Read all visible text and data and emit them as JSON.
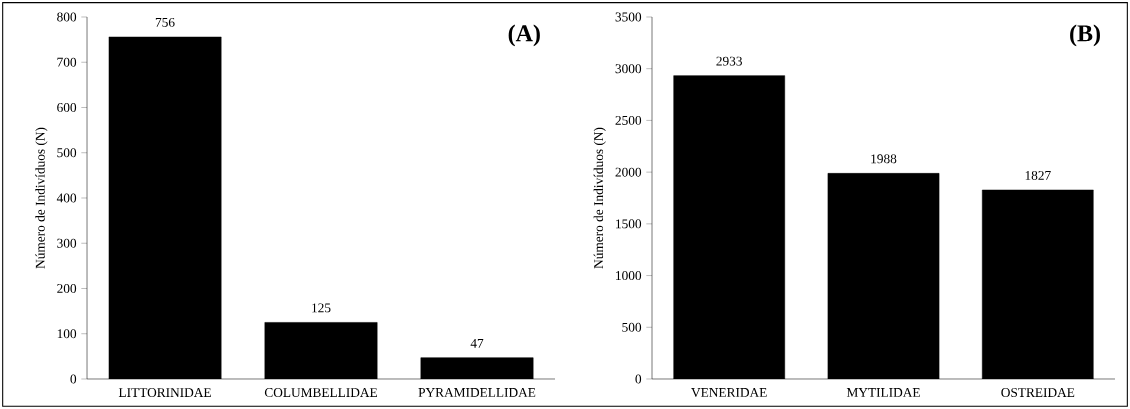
{
  "chart_data": [
    {
      "type": "bar",
      "title": "(A)",
      "ylabel": "Número de Indivíduos (N)",
      "categories": [
        "LITTORINIDAE",
        "COLUMBELLIDAE",
        "PYRAMIDELLIDAE"
      ],
      "values": [
        756,
        125,
        47
      ],
      "color": "#000000",
      "ylim": [
        0,
        800
      ],
      "yticks": [
        0,
        100,
        200,
        300,
        400,
        500,
        600,
        700,
        800
      ],
      "data_labels": true
    },
    {
      "type": "bar",
      "title": "(B)",
      "ylabel": "Número de Indivíduos (N)",
      "categories": [
        "VENERIDAE",
        "MYTILIDAE",
        "OSTREIDAE"
      ],
      "values": [
        2933,
        1988,
        1827
      ],
      "color": "#000000",
      "ylim": [
        0,
        3500
      ],
      "yticks": [
        0,
        500,
        1000,
        1500,
        2000,
        2500,
        3000,
        3500
      ],
      "data_labels": true
    }
  ]
}
